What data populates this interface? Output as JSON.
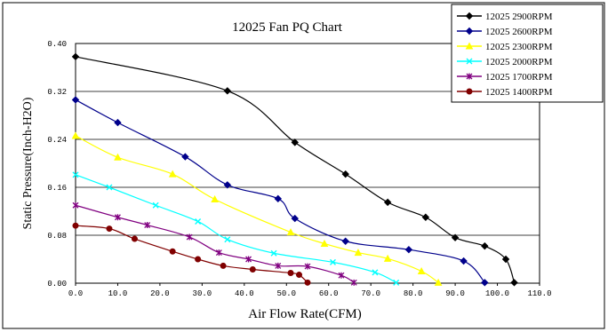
{
  "chart_data": {
    "type": "line",
    "title": "12025 Fan PQ Chart",
    "xlabel": "Air Flow Rate(CFM)",
    "ylabel": "Static Pressure(Inch-H2O)",
    "xlim": [
      0,
      110
    ],
    "ylim": [
      0,
      0.4
    ],
    "x_ticks": [
      "0.0",
      "10.0",
      "20.0",
      "30.0",
      "40.0",
      "50.0",
      "60.0",
      "70.0",
      "80.0",
      "90.0",
      "100.0",
      "110.0"
    ],
    "y_ticks": [
      "0.00",
      "0.08",
      "0.16",
      "0.24",
      "0.32",
      "0.40"
    ],
    "grid": "horizontal",
    "legend_position": "top-right",
    "series": [
      {
        "name": "12025 2900RPM",
        "color": "#000000",
        "marker": "diamond",
        "points": [
          [
            0,
            0.378
          ],
          [
            36,
            0.321
          ],
          [
            52,
            0.235
          ],
          [
            64,
            0.182
          ],
          [
            74,
            0.135
          ],
          [
            83,
            0.11
          ],
          [
            90,
            0.076
          ],
          [
            97,
            0.062
          ],
          [
            102,
            0.04
          ],
          [
            104,
            0.001
          ]
        ]
      },
      {
        "name": "12025 2600RPM",
        "color": "#00008b",
        "marker": "diamond",
        "points": [
          [
            0,
            0.306
          ],
          [
            10,
            0.268
          ],
          [
            26,
            0.211
          ],
          [
            36,
            0.164
          ],
          [
            48,
            0.141
          ],
          [
            52,
            0.108
          ],
          [
            64,
            0.07
          ],
          [
            79,
            0.056
          ],
          [
            92,
            0.037
          ],
          [
            97,
            0.001
          ]
        ]
      },
      {
        "name": "12025 2300RPM",
        "color": "#ffff00",
        "marker": "triangle",
        "points": [
          [
            0,
            0.246
          ],
          [
            10,
            0.21
          ],
          [
            23,
            0.182
          ],
          [
            33,
            0.14
          ],
          [
            51,
            0.085
          ],
          [
            59,
            0.066
          ],
          [
            67,
            0.051
          ],
          [
            74,
            0.041
          ],
          [
            82,
            0.02
          ],
          [
            86,
            0.001
          ]
        ]
      },
      {
        "name": "12025 2000RPM",
        "color": "#00ffff",
        "marker": "x",
        "points": [
          [
            0,
            0.181
          ],
          [
            8,
            0.16
          ],
          [
            19,
            0.13
          ],
          [
            29,
            0.103
          ],
          [
            36,
            0.073
          ],
          [
            47,
            0.05
          ],
          [
            61,
            0.035
          ],
          [
            71,
            0.018
          ],
          [
            76,
            0.001
          ]
        ]
      },
      {
        "name": "12025 1700RPM",
        "color": "#800080",
        "marker": "asterisk",
        "points": [
          [
            0,
            0.13
          ],
          [
            10,
            0.11
          ],
          [
            17,
            0.097
          ],
          [
            27,
            0.077
          ],
          [
            34,
            0.051
          ],
          [
            41,
            0.04
          ],
          [
            48,
            0.029
          ],
          [
            55,
            0.028
          ],
          [
            63,
            0.013
          ],
          [
            66,
            0.001
          ]
        ]
      },
      {
        "name": "12025 1400RPM",
        "color": "#800000",
        "marker": "circle",
        "points": [
          [
            0,
            0.096
          ],
          [
            8,
            0.091
          ],
          [
            14,
            0.074
          ],
          [
            23,
            0.053
          ],
          [
            29,
            0.04
          ],
          [
            35,
            0.029
          ],
          [
            42,
            0.023
          ],
          [
            51,
            0.017
          ],
          [
            53,
            0.014
          ],
          [
            55,
            0.001
          ]
        ]
      }
    ]
  }
}
